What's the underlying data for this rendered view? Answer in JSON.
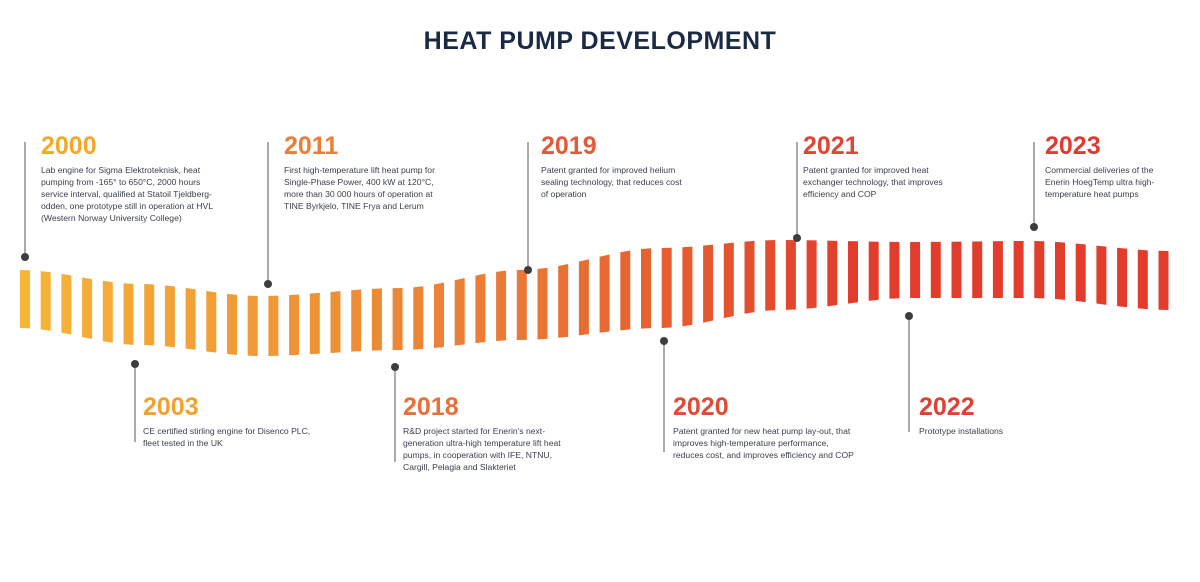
{
  "title": "HEAT PUMP DEVELOPMENT",
  "colors": {
    "title": "#1b2a44",
    "gradient_start": "#f6b537",
    "gradient_mid": "#ea7a35",
    "gradient_end": "#e23d2c",
    "marker": "#3d3d3d"
  },
  "milestones": [
    {
      "year": "2000",
      "color": "#f4a828",
      "description": "Lab engine for Sigma Elektroteknisk, heat pumping from -165° to 650°C, 2000 hours service interval, qualified at Statoil Tjeldberg-odden, one prototype still in operation at HVL (Western Norway University College)"
    },
    {
      "year": "2003",
      "color": "#f2a12e",
      "description": "CE certified stirling engine for Disenco PLC, fleet tested in the UK"
    },
    {
      "year": "2011",
      "color": "#ec7e34",
      "description": "First high-temperature lift heat pump for Single-Phase Power, 400 kW at 120°C, more than 30 000 hours of operation at TINE Byrkjelo, TINE Frya and Lerum"
    },
    {
      "year": "2018",
      "color": "#e8703a",
      "description": "R&D project started for Enerin's next-generation ultra-high temperature lift heat pumps, in cooperation with IFE, NTNU, Cargill, Pelagia and Slakteriet"
    },
    {
      "year": "2019",
      "color": "#e35a38",
      "description": "Patent granted for improved helium sealing technology, that reduces cost of operation"
    },
    {
      "year": "2020",
      "color": "#e04a36",
      "description": "Patent granted for new heat pump lay-out, that improves high-temperature performance, reduces cost, and improves efficiency and COP"
    },
    {
      "year": "2021",
      "color": "#e04435",
      "description": "Patent granted for improved heat exchanger technology, that improves efficiency and COP"
    },
    {
      "year": "2022",
      "color": "#df4033",
      "description": "Prototype installations"
    },
    {
      "year": "2023",
      "color": "#de3c32",
      "description": "Commercial deliveries of the Enerin HoegTemp ultra high-temperature heat pumps"
    }
  ]
}
